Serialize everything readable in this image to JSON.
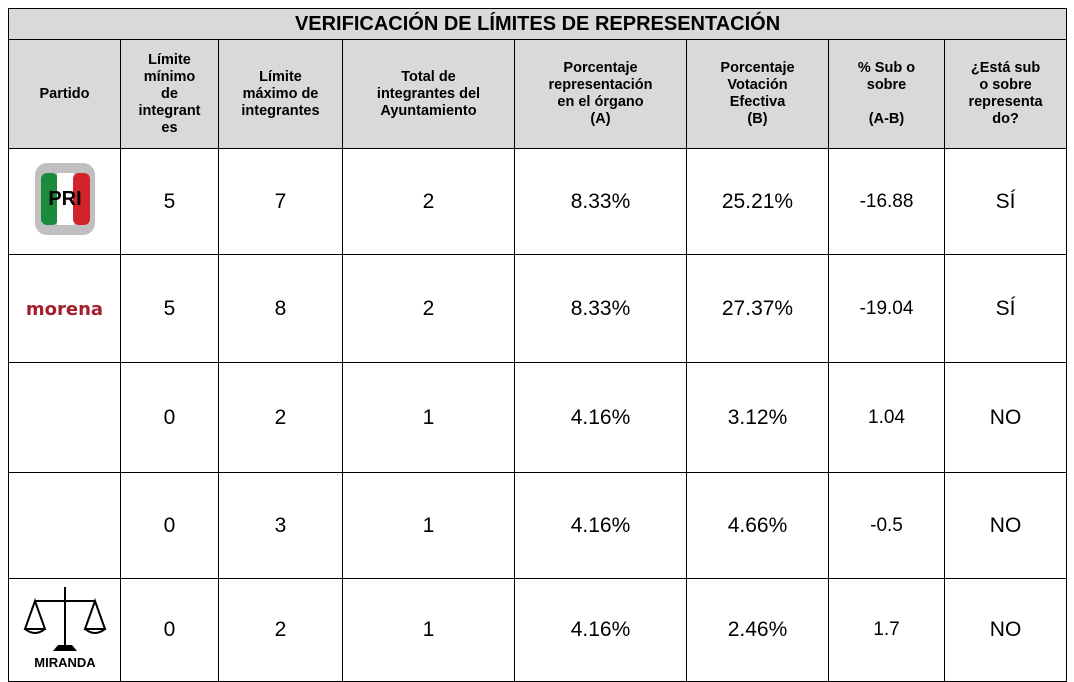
{
  "title": "VERIFICACIÓN DE LÍMITES DE REPRESENTACIÓN",
  "table": {
    "header": [
      "Partido",
      "Límite\nmínimo\nde\nintegrant\nes",
      "Límite\nmáximo de\nintegrantes",
      "Total de\nintegrantes del\nAyuntamiento",
      "Porcentaje\nrepresentación\nen el órgano\n(A)",
      "Porcentaje\nVotación\nEfectiva\n(B)",
      "% Sub o\nsobre\n\n(A-B)",
      "¿Está sub\no sobre\nrepresenta\ndo?"
    ],
    "rows": [
      {
        "logo": "PRI",
        "cells": [
          "5",
          "7",
          "2",
          "8.33%",
          "25.21%",
          "-16.88",
          "SÍ"
        ]
      },
      {
        "logo": "morena",
        "cells": [
          "5",
          "8",
          "2",
          "8.33%",
          "27.37%",
          "-19.04",
          "SÍ"
        ]
      },
      {
        "cells": [
          "0",
          "2",
          "1",
          "4.16%",
          "3.12%",
          "1.04",
          "NO"
        ]
      },
      {
        "cells": [
          "0",
          "3",
          "1",
          "4.16%",
          "4.66%",
          "-0.5",
          "NO"
        ]
      },
      {
        "logo": "MIRANDA",
        "cells": [
          "0",
          "2",
          "1",
          "4.16%",
          "2.46%",
          "1.7",
          "NO"
        ]
      }
    ]
  }
}
